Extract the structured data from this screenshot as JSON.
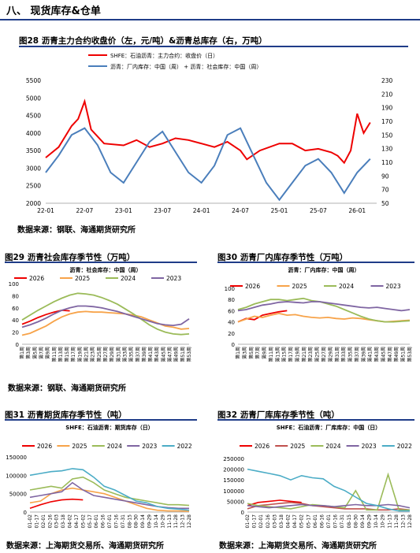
{
  "section": {
    "title": "八、 现货库存&仓单"
  },
  "figures": [
    {
      "caption": "图28  沥青主力合约收盘价（左，元/吨）&沥青总库存（右，万吨）",
      "source": "数据来源：钢联、海通期货研究所"
    },
    {
      "caption": "图29  沥青社会库存季节性（万吨）",
      "source": "数据来源：钢联、海通期货研究所"
    },
    {
      "caption": "图30  沥青厂内库存季节性（万吨）",
      "source": ""
    },
    {
      "caption": "图31  沥青期货库存季节性（吨）",
      "source": "数据来源：上海期货交易所、海通期货研究所"
    },
    {
      "caption": "图32  沥青厂库库存季节性（吨）",
      "source": "数据来源：上海期货交易所、海通期货研究所"
    }
  ],
  "chart_data": [
    {
      "id": "fig28",
      "type": "line",
      "series": [
        {
          "name": "SHFE：石油沥青：主力合约：收盘价（日）",
          "color": "#ee0000",
          "axis": "left",
          "x": [
            "2022-01",
            "2022-03",
            "2022-05",
            "2022-06",
            "2022-07",
            "2022-08",
            "2022-10",
            "2023-01",
            "2023-03",
            "2023-05",
            "2023-07",
            "2023-09",
            "2023-11",
            "2024-01",
            "2024-03",
            "2024-05",
            "2024-07",
            "2024-08",
            "2024-10",
            "2025-01",
            "2025-03",
            "2025-05",
            "2025-07",
            "2025-09",
            "2025-10",
            "2025-11",
            "2025-12",
            "2026-01",
            "2026-02",
            "2026-03"
          ],
          "values": [
            3300,
            3600,
            4200,
            4400,
            4900,
            4100,
            3700,
            3650,
            3800,
            3600,
            3700,
            3850,
            3800,
            3700,
            3600,
            3750,
            3500,
            3250,
            3500,
            3700,
            3700,
            3500,
            3550,
            3450,
            3350,
            3150,
            3500,
            4550,
            4000,
            4300
          ]
        },
        {
          "name": "沥青：厂内库存：中国（周） + 沥青：社会库存：中国（周）",
          "color": "#4a7ebb",
          "axis": "right",
          "x": [
            "2022-01",
            "2022-03",
            "2022-05",
            "2022-07",
            "2022-09",
            "2022-11",
            "2023-01",
            "2023-03",
            "2023-05",
            "2023-07",
            "2023-09",
            "2023-11",
            "2024-01",
            "2024-03",
            "2024-05",
            "2024-07",
            "2024-09",
            "2024-11",
            "2025-01",
            "2025-03",
            "2025-05",
            "2025-07",
            "2025-09",
            "2025-11",
            "2026-01",
            "2026-03"
          ],
          "values": [
            95,
            120,
            150,
            160,
            135,
            95,
            80,
            110,
            140,
            155,
            125,
            95,
            80,
            105,
            150,
            160,
            120,
            80,
            55,
            80,
            105,
            115,
            95,
            65,
            95,
            115
          ]
        }
      ],
      "left_axis": {
        "ticks": [
          2000,
          2500,
          3000,
          3500,
          4000,
          4500,
          5000,
          5500
        ],
        "range": [
          2000,
          5500
        ]
      },
      "right_axis": {
        "ticks": [
          50,
          70,
          90,
          110,
          130,
          150,
          170,
          190,
          210,
          230
        ],
        "range": [
          50,
          230
        ]
      },
      "x_ticks": [
        "22-01",
        "22-07",
        "23-01",
        "23-07",
        "24-01",
        "24-07",
        "25-01",
        "25-07",
        "26-01"
      ],
      "legend": "top"
    },
    {
      "id": "fig29",
      "type": "line",
      "title": "沥青：社会库存：中国（周）",
      "series": [
        {
          "name": "2026",
          "color": "#ee0000",
          "values": [
            33,
            38,
            44,
            49,
            53,
            56,
            55
          ]
        },
        {
          "name": "2025",
          "color": "#f7a349",
          "values": [
            15,
            18,
            24,
            30,
            38,
            45,
            50,
            53,
            54,
            53,
            53,
            52,
            51,
            50,
            48,
            45,
            40,
            35,
            30,
            28,
            25,
            26
          ]
        },
        {
          "name": "2024",
          "color": "#9bbb59",
          "values": [
            40,
            48,
            56,
            63,
            70,
            76,
            81,
            84,
            83,
            81,
            77,
            72,
            66,
            58,
            50,
            41,
            32,
            25,
            20,
            17,
            16,
            17
          ]
        },
        {
          "name": "2023",
          "color": "#7f65a2",
          "values": [
            28,
            32,
            37,
            43,
            50,
            56,
            60,
            63,
            63,
            62,
            60,
            57,
            54,
            50,
            46,
            42,
            38,
            34,
            32,
            31,
            33,
            42
          ]
        }
      ],
      "y_ticks": [
        0,
        20,
        40,
        60,
        80,
        100
      ],
      "ylim": [
        0,
        100
      ],
      "x_ticks": [
        "第1周",
        "第3周",
        "第5周",
        "第7周",
        "第9周",
        "第11周",
        "第13周",
        "第15周",
        "第17周",
        "第19周",
        "第21周",
        "第23周",
        "第25周",
        "第27周",
        "第29周",
        "第31周",
        "第33周",
        "第35周",
        "第37周",
        "第39周",
        "第41周",
        "第43周",
        "第45周",
        "第47周",
        "第49周",
        "第51周",
        "第53周"
      ],
      "legend": "top"
    },
    {
      "id": "fig30",
      "type": "line",
      "title": "沥青：厂内库存：中国（周）",
      "series": [
        {
          "name": "2026",
          "color": "#ee0000",
          "values": [
            40,
            46,
            44,
            52,
            55,
            58,
            60
          ]
        },
        {
          "name": "2025",
          "color": "#f7a349",
          "values": [
            40,
            45,
            50,
            48,
            52,
            55,
            52,
            53,
            50,
            48,
            47,
            48,
            46,
            45,
            47,
            46,
            44,
            42,
            40,
            41,
            42,
            43
          ]
        },
        {
          "name": "2024",
          "color": "#9bbb59",
          "values": [
            62,
            66,
            72,
            76,
            80,
            80,
            78,
            80,
            82,
            78,
            76,
            72,
            68,
            62,
            56,
            50,
            45,
            42,
            40,
            40,
            41,
            42
          ]
        },
        {
          "name": "2023",
          "color": "#7f65a2",
          "values": [
            60,
            62,
            66,
            70,
            72,
            75,
            76,
            75,
            74,
            76,
            76,
            74,
            72,
            70,
            68,
            66,
            65,
            66,
            64,
            62,
            60,
            62
          ]
        }
      ],
      "y_ticks": [
        0,
        20,
        40,
        60,
        80,
        100
      ],
      "ylim": [
        0,
        100
      ],
      "x_ticks": [
        "第1周",
        "第3周",
        "第5周",
        "第7周",
        "第9周",
        "第11周",
        "第13周",
        "第15周",
        "第17周",
        "第19周",
        "第21周",
        "第23周",
        "第25周",
        "第27周",
        "第29周",
        "第31周",
        "第33周",
        "第35周",
        "第37周",
        "第39周",
        "第41周",
        "第43周",
        "第45周",
        "第47周",
        "第49周",
        "第51周",
        "第53周"
      ],
      "legend": "top"
    },
    {
      "id": "fig31",
      "type": "line",
      "title": "SHFE：石油沥青：期货库存（日）",
      "series": [
        {
          "name": "2026",
          "color": "#ee0000",
          "values": [
            10000,
            20000,
            28000,
            33000,
            35000,
            33000
          ]
        },
        {
          "name": "2025",
          "color": "#f7a349",
          "values": [
            25000,
            30000,
            50000,
            60000,
            65000,
            60000,
            55000,
            50000,
            40000,
            30000,
            20000,
            10000,
            5000,
            3000,
            3000,
            2000
          ]
        },
        {
          "name": "2024",
          "color": "#9bbb59",
          "values": [
            60000,
            65000,
            70000,
            65000,
            90000,
            95000,
            80000,
            60000,
            50000,
            40000,
            35000,
            30000,
            25000,
            20000,
            20000,
            18000
          ]
        },
        {
          "name": "2023",
          "color": "#7f65a2",
          "values": [
            40000,
            45000,
            50000,
            55000,
            80000,
            60000,
            45000,
            40000,
            35000,
            30000,
            25000,
            20000,
            15000,
            12000,
            10000,
            10000
          ]
        },
        {
          "name": "2022",
          "color": "#4bacc6",
          "values": [
            100000,
            105000,
            110000,
            112000,
            118000,
            115000,
            95000,
            70000,
            60000,
            45000,
            30000,
            25000,
            15000,
            10000,
            8000,
            5000
          ]
        }
      ],
      "y_ticks": [
        0,
        50000,
        100000,
        150000
      ],
      "ylim": [
        0,
        150000
      ],
      "x_ticks": [
        "01-02",
        "01-17",
        "02-01",
        "02-16",
        "03-03",
        "03-18",
        "04-02",
        "04-17",
        "05-02",
        "05-17",
        "06-01",
        "06-16",
        "07-01",
        "07-16",
        "07-31",
        "08-15",
        "08-30",
        "09-14",
        "09-29",
        "10-14",
        "10-29",
        "11-13",
        "11-28",
        "12-13",
        "12-28"
      ],
      "legend": "top"
    },
    {
      "id": "fig32",
      "type": "line",
      "title": "SHFE：石油沥青：厂库库存：中国（日）",
      "series": [
        {
          "name": "2026",
          "color": "#ee0000",
          "values": [
            30000,
            45000,
            50000,
            55000,
            50000,
            45000
          ]
        },
        {
          "name": "2025",
          "color": "#c0504d",
          "values": [
            15000,
            30000,
            35000,
            40000,
            45000,
            40000,
            30000,
            25000,
            20000,
            15000,
            15000,
            15000,
            10000,
            10000,
            15000,
            10000
          ]
        },
        {
          "name": "2024",
          "color": "#9bbb59",
          "values": [
            40000,
            30000,
            25000,
            20000,
            15000,
            25000,
            35000,
            30000,
            25000,
            20000,
            100000,
            10000,
            10000,
            175000,
            10000,
            10000
          ]
        },
        {
          "name": "2023",
          "color": "#7f65a2",
          "values": [
            30000,
            25000,
            20000,
            25000,
            30000,
            35000,
            30000,
            30000,
            25000,
            30000,
            35000,
            30000,
            30000,
            35000,
            30000,
            20000
          ]
        },
        {
          "name": "2022",
          "color": "#4bacc6",
          "values": [
            200000,
            190000,
            180000,
            170000,
            150000,
            170000,
            160000,
            155000,
            120000,
            100000,
            70000,
            40000,
            30000,
            15000,
            5000,
            5000
          ]
        }
      ],
      "y_ticks": [
        0,
        50000,
        100000,
        150000,
        200000,
        250000
      ],
      "ylim": [
        0,
        250000
      ],
      "x_ticks": [
        "01-02",
        "01-17",
        "02-01",
        "02-16",
        "03-03",
        "03-18",
        "04-02",
        "04-17",
        "05-02",
        "05-17",
        "06-01",
        "06-16",
        "07-01",
        "07-16",
        "07-31",
        "08-15",
        "08-30",
        "09-14",
        "09-29",
        "10-14",
        "10-29",
        "11-13",
        "11-28",
        "12-13",
        "12-28"
      ],
      "legend": "top"
    }
  ]
}
